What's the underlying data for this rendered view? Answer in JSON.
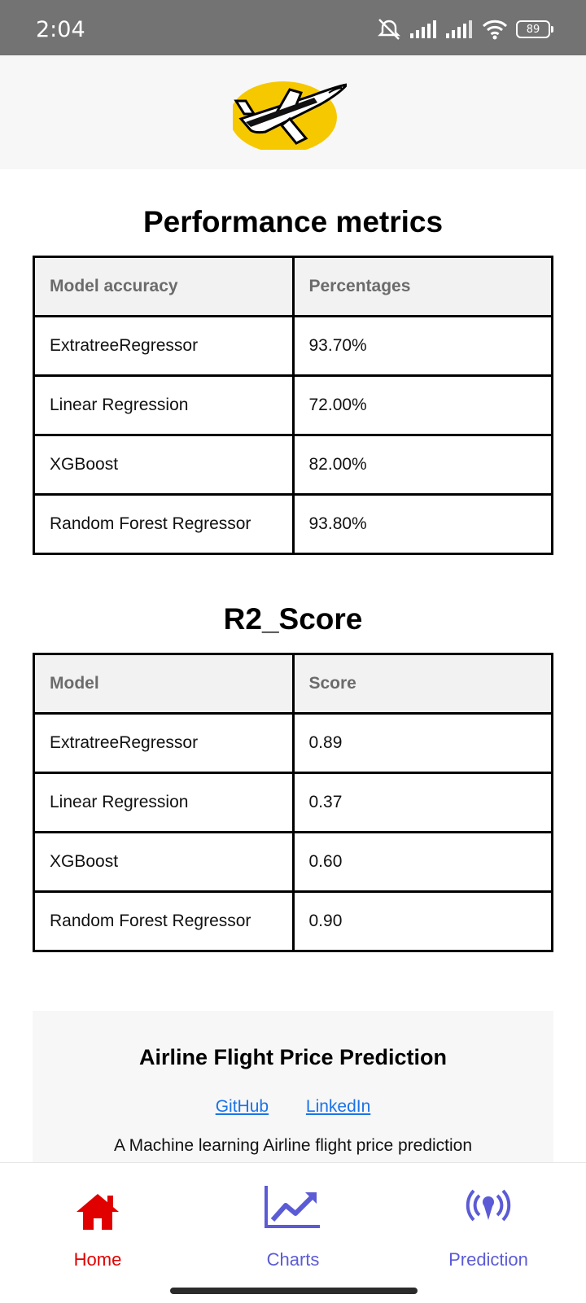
{
  "status_bar": {
    "time": "2:04",
    "battery": "89",
    "icons": [
      "mute-alarm-icon",
      "signal-icon",
      "signal-icon",
      "wifi-icon",
      "battery-icon"
    ]
  },
  "header": {
    "logo_icon": "airplane-logo-icon"
  },
  "performance": {
    "title": "Performance metrics",
    "headers": [
      "Model accuracy",
      "Percentages"
    ],
    "rows": [
      [
        "ExtratreeRegressor",
        "93.70%"
      ],
      [
        "Linear Regression",
        "72.00%"
      ],
      [
        "XGBoost",
        "82.00%"
      ],
      [
        "Random Forest Regressor",
        "93.80%"
      ]
    ]
  },
  "r2": {
    "title": "R2_Score",
    "headers": [
      "Model",
      "Score"
    ],
    "rows": [
      [
        "ExtratreeRegressor",
        "0.89"
      ],
      [
        "Linear Regression",
        "0.37"
      ],
      [
        "XGBoost",
        "0.60"
      ],
      [
        "Random Forest Regressor",
        "0.90"
      ]
    ]
  },
  "footer": {
    "title": "Airline Flight Price Prediction",
    "links": [
      "GitHub",
      "LinkedIn"
    ],
    "description": "A Machine learning Airline flight price prediction"
  },
  "nav": {
    "items": [
      {
        "label": "Home",
        "icon": "home-icon",
        "color": "#e00000",
        "active": true
      },
      {
        "label": "Charts",
        "icon": "chart-line-icon",
        "color": "#5b5bd6",
        "active": false
      },
      {
        "label": "Prediction",
        "icon": "broadcast-icon",
        "color": "#5b5bd6",
        "active": false
      }
    ]
  },
  "colors": {
    "accent_active": "#e00000",
    "accent": "#5b5bd6",
    "link": "#1a73e8"
  }
}
